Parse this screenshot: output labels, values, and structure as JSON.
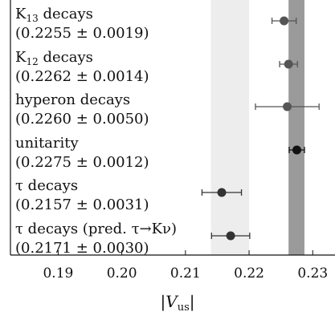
{
  "chart_data": {
    "type": "scatter",
    "xlabel": "|V_us|",
    "xlabel_main": "V",
    "xlabel_sub": "us",
    "xlim": [
      0.1825,
      0.2335
    ],
    "xticks": [
      "0.19",
      "0.20",
      "0.21",
      "0.22",
      "0.23"
    ],
    "xtick_values": [
      0.19,
      0.2,
      0.21,
      0.22,
      0.23
    ],
    "grid": false,
    "bands": [
      {
        "name": "light band",
        "from": 0.214,
        "to": 0.22,
        "color": "#ededed"
      },
      {
        "name": "dark band",
        "from": 0.2262,
        "to": 0.2287,
        "color": "#9a9a9a"
      }
    ],
    "points": [
      {
        "label_main": "K",
        "label_sub": "13",
        "label_rest": " decays",
        "value_text": "(0.2255 ± 0.0019)",
        "x": 0.2255,
        "err": 0.0019,
        "color": "#555555"
      },
      {
        "label_main": "K",
        "label_sub": "12",
        "label_rest": " decays",
        "value_text": "(0.2262 ± 0.0014)",
        "x": 0.2262,
        "err": 0.0014,
        "color": "#555555"
      },
      {
        "label_main": "hyperon decays",
        "label_sub": "",
        "label_rest": "",
        "value_text": "(0.2260 ± 0.0050)",
        "x": 0.226,
        "err": 0.005,
        "color": "#555555"
      },
      {
        "label_main": "unitarity",
        "label_sub": "",
        "label_rest": "",
        "value_text": "(0.2275 ± 0.0012)",
        "x": 0.2275,
        "err": 0.0012,
        "color": "#111111"
      },
      {
        "label_main": "τ decays",
        "label_sub": "",
        "label_rest": "",
        "value_text": "(0.2157 ± 0.0031)",
        "x": 0.2157,
        "err": 0.0031,
        "color": "#333333"
      },
      {
        "label_main": "τ decays (pred. τ→Kν)",
        "label_sub": "",
        "label_rest": "",
        "value_text": "(0.2171 ± 0.0030)",
        "x": 0.2171,
        "err": 0.003,
        "color": "#333333"
      }
    ]
  }
}
